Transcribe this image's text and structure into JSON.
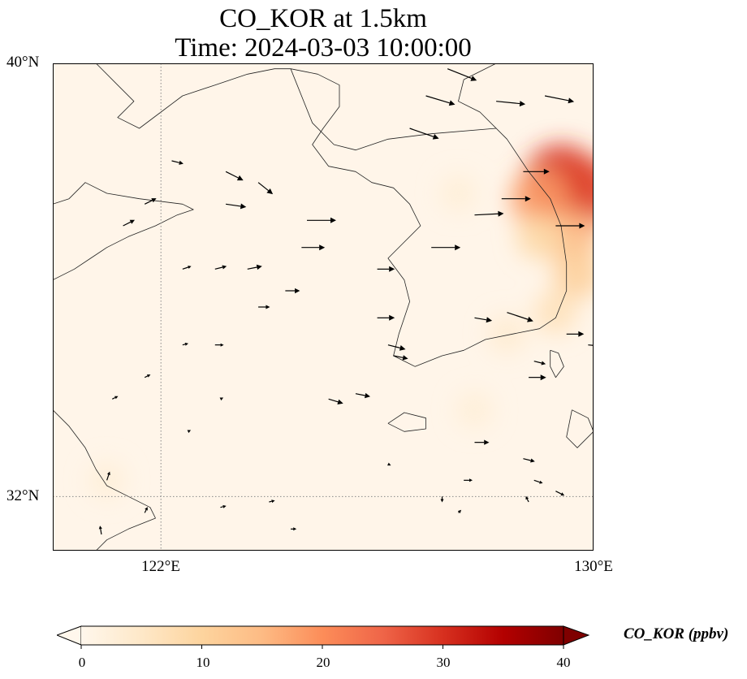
{
  "title": {
    "line1": "CO_KOR at 1.5km",
    "line2": "Time: 2024-03-03 10:00:00"
  },
  "map": {
    "variable": "CO_KOR",
    "level": "1.5km",
    "extent": {
      "lon_min": 120,
      "lon_max": 130,
      "lat_min": 31,
      "lat_max": 40
    },
    "gridlines": {
      "style": "dotted",
      "color": "#888888",
      "lons": [
        122
      ],
      "lats": [
        32
      ]
    },
    "coastline_color": "#222222",
    "background_color": "#fff5e9",
    "wind_vectors_shown": true
  },
  "axes": {
    "lat_ticks": [
      {
        "value": 40,
        "label": "40°N"
      },
      {
        "value": 32,
        "label": "32°N"
      }
    ],
    "lon_ticks": [
      {
        "value": 122,
        "label": "122°E"
      },
      {
        "value": 130,
        "label": "130°E"
      }
    ]
  },
  "colorbar": {
    "label": "CO_KOR (ppbv)",
    "colormap": "OrRd",
    "min": 0,
    "max": 40,
    "extend": "both",
    "ticks": [
      0,
      10,
      20,
      30,
      40
    ],
    "tick_labels": [
      "0",
      "10",
      "20",
      "30",
      "40"
    ],
    "colors": [
      "#fff7ec",
      "#fee8c8",
      "#fdd49e",
      "#fdbb84",
      "#fc8d59",
      "#ef6548",
      "#d7301f",
      "#b30000",
      "#7f0000"
    ]
  },
  "concentration_field": [
    {
      "lon": 129.4,
      "lat": 37.8,
      "value": 30
    },
    {
      "lon": 129.8,
      "lat": 37.6,
      "value": 28
    },
    {
      "lon": 129.0,
      "lat": 37.5,
      "value": 18
    },
    {
      "lon": 129.6,
      "lat": 36.8,
      "value": 15
    },
    {
      "lon": 129.0,
      "lat": 36.8,
      "value": 9
    },
    {
      "lon": 129.7,
      "lat": 36.1,
      "value": 11
    },
    {
      "lon": 129.3,
      "lat": 35.4,
      "value": 7
    },
    {
      "lon": 128.4,
      "lat": 35.0,
      "value": 4
    },
    {
      "lon": 127.5,
      "lat": 37.6,
      "value": 3
    },
    {
      "lon": 127.8,
      "lat": 33.6,
      "value": 3
    },
    {
      "lon": 121.0,
      "lat": 32.3,
      "value": 3
    }
  ],
  "wind_vectors": [
    {
      "lon": 127.3,
      "lat": 39.9,
      "u": 1.0,
      "v": -0.4
    },
    {
      "lon": 126.9,
      "lat": 39.4,
      "u": 1.0,
      "v": -0.3
    },
    {
      "lon": 128.2,
      "lat": 39.3,
      "u": 1.0,
      "v": -0.1
    },
    {
      "lon": 129.1,
      "lat": 39.4,
      "u": 1.0,
      "v": -0.2
    },
    {
      "lon": 126.6,
      "lat": 38.8,
      "u": 1.0,
      "v": -0.35
    },
    {
      "lon": 128.7,
      "lat": 38.0,
      "u": 0.9,
      "v": 0.0
    },
    {
      "lon": 128.3,
      "lat": 37.5,
      "u": 1.0,
      "v": 0.0
    },
    {
      "lon": 127.8,
      "lat": 37.2,
      "u": 1.0,
      "v": 0.05
    },
    {
      "lon": 129.3,
      "lat": 37.0,
      "u": 1.0,
      "v": 0.0
    },
    {
      "lon": 127.0,
      "lat": 36.6,
      "u": 1.0,
      "v": 0.0
    },
    {
      "lon": 126.0,
      "lat": 36.2,
      "u": 0.6,
      "v": 0.0
    },
    {
      "lon": 124.7,
      "lat": 37.1,
      "u": 1.0,
      "v": 0.0
    },
    {
      "lon": 124.6,
      "lat": 36.6,
      "u": 0.8,
      "v": 0.0
    },
    {
      "lon": 123.2,
      "lat": 37.4,
      "u": 0.7,
      "v": -0.1
    },
    {
      "lon": 123.8,
      "lat": 37.8,
      "u": 0.5,
      "v": -0.4
    },
    {
      "lon": 123.2,
      "lat": 38.0,
      "u": 0.6,
      "v": -0.3
    },
    {
      "lon": 122.2,
      "lat": 38.2,
      "u": 0.4,
      "v": -0.1
    },
    {
      "lon": 121.7,
      "lat": 37.4,
      "u": 0.4,
      "v": 0.2
    },
    {
      "lon": 121.3,
      "lat": 37.0,
      "u": 0.4,
      "v": 0.2
    },
    {
      "lon": 122.4,
      "lat": 36.2,
      "u": 0.3,
      "v": 0.1
    },
    {
      "lon": 123.0,
      "lat": 36.2,
      "u": 0.4,
      "v": 0.1
    },
    {
      "lon": 123.6,
      "lat": 36.2,
      "u": 0.5,
      "v": 0.1
    },
    {
      "lon": 124.3,
      "lat": 35.8,
      "u": 0.5,
      "v": 0.0
    },
    {
      "lon": 126.0,
      "lat": 35.3,
      "u": 0.6,
      "v": 0.0
    },
    {
      "lon": 126.2,
      "lat": 34.8,
      "u": 0.6,
      "v": -0.15
    },
    {
      "lon": 127.8,
      "lat": 35.3,
      "u": 0.6,
      "v": -0.1
    },
    {
      "lon": 128.4,
      "lat": 35.4,
      "u": 0.9,
      "v": -0.3
    },
    {
      "lon": 129.5,
      "lat": 35.0,
      "u": 0.6,
      "v": 0.0
    },
    {
      "lon": 129.9,
      "lat": 34.8,
      "u": 0.6,
      "v": -0.05
    },
    {
      "lon": 128.8,
      "lat": 34.2,
      "u": 0.6,
      "v": 0.0
    },
    {
      "lon": 128.9,
      "lat": 34.5,
      "u": 0.4,
      "v": -0.1
    },
    {
      "lon": 126.3,
      "lat": 34.6,
      "u": 0.5,
      "v": -0.1
    },
    {
      "lon": 125.6,
      "lat": 33.9,
      "u": 0.5,
      "v": -0.1
    },
    {
      "lon": 125.1,
      "lat": 33.8,
      "u": 0.5,
      "v": -0.15
    },
    {
      "lon": 123.8,
      "lat": 35.5,
      "u": 0.4,
      "v": 0.0
    },
    {
      "lon": 123.0,
      "lat": 34.8,
      "u": 0.3,
      "v": 0.0
    },
    {
      "lon": 122.4,
      "lat": 34.8,
      "u": 0.2,
      "v": 0.05
    },
    {
      "lon": 121.7,
      "lat": 34.2,
      "u": 0.2,
      "v": 0.1
    },
    {
      "lon": 121.1,
      "lat": 33.8,
      "u": 0.2,
      "v": 0.1
    },
    {
      "lon": 127.8,
      "lat": 33.0,
      "u": 0.5,
      "v": 0.0
    },
    {
      "lon": 127.6,
      "lat": 32.3,
      "u": 0.3,
      "v": 0.0
    },
    {
      "lon": 128.7,
      "lat": 32.7,
      "u": 0.4,
      "v": -0.1
    },
    {
      "lon": 128.9,
      "lat": 32.3,
      "u": 0.3,
      "v": -0.1
    },
    {
      "lon": 129.3,
      "lat": 32.1,
      "u": 0.3,
      "v": -0.15
    },
    {
      "lon": 121.0,
      "lat": 32.3,
      "u": 0.1,
      "v": 0.3
    },
    {
      "lon": 120.9,
      "lat": 31.3,
      "u": -0.05,
      "v": 0.3
    },
    {
      "lon": 121.7,
      "lat": 31.7,
      "u": 0.1,
      "v": 0.2
    },
    {
      "lon": 122.5,
      "lat": 33.2,
      "u": 0.1,
      "v": 0.05
    },
    {
      "lon": 123.1,
      "lat": 33.8,
      "u": 0.1,
      "v": 0.05
    },
    {
      "lon": 124.0,
      "lat": 31.9,
      "u": 0.2,
      "v": 0.05
    },
    {
      "lon": 123.1,
      "lat": 31.8,
      "u": 0.2,
      "v": 0.05
    },
    {
      "lon": 124.4,
      "lat": 31.4,
      "u": 0.2,
      "v": 0.0
    },
    {
      "lon": 126.2,
      "lat": 32.6,
      "u": 0.1,
      "v": -0.05
    },
    {
      "lon": 127.2,
      "lat": 32.0,
      "u": 0.0,
      "v": -0.2
    },
    {
      "lon": 127.5,
      "lat": 31.7,
      "u": 0.1,
      "v": 0.1
    },
    {
      "lon": 128.8,
      "lat": 31.9,
      "u": -0.1,
      "v": 0.2
    }
  ],
  "coastlines": {
    "west_china_coast": [
      [
        120.0,
        36.0
      ],
      [
        120.4,
        36.2
      ],
      [
        120.7,
        36.4
      ],
      [
        121.0,
        36.6
      ],
      [
        121.4,
        36.8
      ],
      [
        121.9,
        37.0
      ],
      [
        122.3,
        37.2
      ],
      [
        122.6,
        37.3
      ],
      [
        122.4,
        37.4
      ],
      [
        121.6,
        37.5
      ],
      [
        121.0,
        37.6
      ],
      [
        120.6,
        37.8
      ],
      [
        120.3,
        37.5
      ],
      [
        120.0,
        37.4
      ]
    ],
    "jiangsu_coast": [
      [
        120.0,
        33.6
      ],
      [
        120.3,
        33.3
      ],
      [
        120.6,
        32.9
      ],
      [
        120.8,
        32.5
      ],
      [
        121.0,
        32.2
      ],
      [
        121.4,
        32.0
      ],
      [
        121.8,
        31.8
      ],
      [
        121.9,
        31.6
      ],
      [
        121.4,
        31.4
      ],
      [
        121.0,
        31.2
      ],
      [
        120.8,
        31.0
      ]
    ],
    "liaodong_coast": [
      [
        120.8,
        40.0
      ],
      [
        121.2,
        39.6
      ],
      [
        121.5,
        39.3
      ],
      [
        121.2,
        39.0
      ],
      [
        121.6,
        38.8
      ],
      [
        122.0,
        39.1
      ],
      [
        122.4,
        39.4
      ],
      [
        123.0,
        39.6
      ],
      [
        123.6,
        39.8
      ],
      [
        124.1,
        39.9
      ],
      [
        124.4,
        39.9
      ],
      [
        124.9,
        39.8
      ],
      [
        125.3,
        39.6
      ],
      [
        125.3,
        39.2
      ],
      [
        125.0,
        38.8
      ],
      [
        124.8,
        38.5
      ],
      [
        125.1,
        38.1
      ],
      [
        125.6,
        38.0
      ],
      [
        125.9,
        37.8
      ],
      [
        126.3,
        37.7
      ],
      [
        126.6,
        37.4
      ],
      [
        126.8,
        37.0
      ],
      [
        126.5,
        36.7
      ],
      [
        126.2,
        36.4
      ],
      [
        126.5,
        36.0
      ],
      [
        126.6,
        35.6
      ],
      [
        126.4,
        35.0
      ],
      [
        126.3,
        34.6
      ],
      [
        126.7,
        34.4
      ],
      [
        127.2,
        34.6
      ],
      [
        127.6,
        34.7
      ],
      [
        128.0,
        34.9
      ],
      [
        128.5,
        35.0
      ],
      [
        129.0,
        35.1
      ],
      [
        129.3,
        35.3
      ],
      [
        129.5,
        35.8
      ],
      [
        129.5,
        36.3
      ],
      [
        129.4,
        37.0
      ],
      [
        129.2,
        37.5
      ],
      [
        128.8,
        38.0
      ],
      [
        128.4,
        38.6
      ],
      [
        127.9,
        39.1
      ],
      [
        127.5,
        39.3
      ],
      [
        127.6,
        39.7
      ],
      [
        128.2,
        40.0
      ]
    ],
    "jeju": [
      [
        126.2,
        33.35
      ],
      [
        126.5,
        33.55
      ],
      [
        126.9,
        33.45
      ],
      [
        126.9,
        33.25
      ],
      [
        126.5,
        33.2
      ],
      [
        126.2,
        33.35
      ]
    ],
    "tsushima": [
      [
        129.2,
        34.7
      ],
      [
        129.35,
        34.65
      ],
      [
        129.45,
        34.4
      ],
      [
        129.3,
        34.2
      ],
      [
        129.2,
        34.4
      ],
      [
        129.2,
        34.7
      ]
    ],
    "kyushu": [
      [
        129.6,
        33.6
      ],
      [
        129.9,
        33.45
      ],
      [
        130.0,
        33.2
      ],
      [
        129.7,
        32.9
      ],
      [
        129.5,
        33.1
      ],
      [
        129.6,
        33.6
      ]
    ],
    "amnok_river": [
      [
        124.4,
        39.9
      ],
      [
        124.8,
        38.9
      ],
      [
        125.2,
        38.5
      ],
      [
        125.6,
        38.4
      ],
      [
        126.2,
        38.6
      ],
      [
        127.0,
        38.7
      ],
      [
        128.2,
        38.8
      ]
    ]
  }
}
